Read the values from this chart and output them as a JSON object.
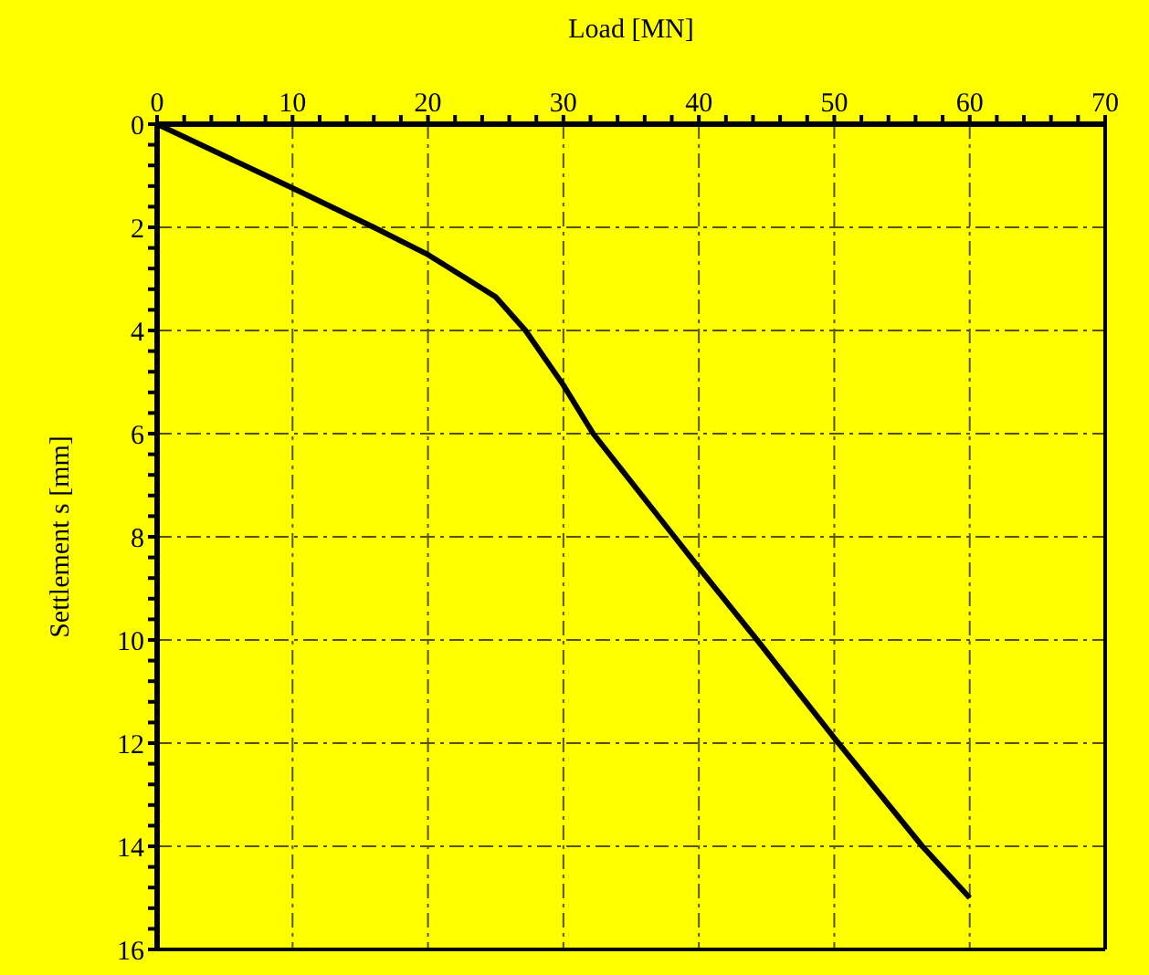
{
  "chart_data": {
    "type": "line",
    "xlabel": "Load [MN]",
    "ylabel": "Settlement s [mm]",
    "x": [
      0,
      10,
      16,
      20,
      25,
      27.2,
      30,
      32.2,
      38.2,
      40,
      44.3,
      50,
      56.5,
      60
    ],
    "series": [
      {
        "color": "#000000",
        "values": [
          0,
          1.24,
          2,
          2.53,
          3.35,
          4,
          5.06,
          6,
          8,
          8.6,
          10,
          11.9,
          14,
          15
        ]
      }
    ],
    "xlim": [
      0,
      70
    ],
    "ylim": [
      16,
      0
    ],
    "xticks": [
      0,
      {
        "value": 2,
        "label": null
      },
      {
        "value": 4,
        "label": null
      },
      {
        "value": 6,
        "label": null
      },
      {
        "value": 8,
        "label": null
      },
      10,
      {
        "value": 12,
        "label": null
      },
      {
        "value": 14,
        "label": null
      },
      {
        "value": 16,
        "label": null
      },
      {
        "value": 18,
        "label": null
      },
      20,
      {
        "value": 22,
        "label": null
      },
      {
        "value": 24,
        "label": null
      },
      {
        "value": 26,
        "label": null
      },
      {
        "value": 28,
        "label": null
      },
      30,
      {
        "value": 32,
        "label": null
      },
      {
        "value": 34,
        "label": null
      },
      {
        "value": 36,
        "label": null
      },
      {
        "value": 38,
        "label": null
      },
      40,
      {
        "value": 42,
        "label": null
      },
      {
        "value": 44,
        "label": null
      },
      {
        "value": 46,
        "label": null
      },
      {
        "value": 48,
        "label": null
      },
      50,
      {
        "value": 52,
        "label": null
      },
      {
        "value": 54,
        "label": null
      },
      {
        "value": 56,
        "label": null
      },
      {
        "value": 58,
        "label": null
      },
      60,
      {
        "value": 62,
        "label": null
      },
      {
        "value": 64,
        "label": null
      },
      {
        "value": 66,
        "label": null
      },
      {
        "value": 68,
        "label": null
      },
      70
    ],
    "yticks": [
      0,
      {
        "value": 0.4,
        "label": null
      },
      {
        "value": 0.8,
        "label": null
      },
      {
        "value": 1.2,
        "label": null
      },
      {
        "value": 1.6,
        "label": null
      },
      2,
      {
        "value": 2.4,
        "label": null
      },
      {
        "value": 2.8,
        "label": null
      },
      {
        "value": 3.2,
        "label": null
      },
      {
        "value": 3.6,
        "label": null
      },
      4,
      {
        "value": 4.4,
        "label": null
      },
      {
        "value": 4.8,
        "label": null
      },
      {
        "value": 5.2,
        "label": null
      },
      {
        "value": 5.6,
        "label": null
      },
      6,
      {
        "value": 6.4,
        "label": null
      },
      {
        "value": 6.8,
        "label": null
      },
      {
        "value": 7.2,
        "label": null
      },
      {
        "value": 7.6,
        "label": null
      },
      8,
      {
        "value": 8.4,
        "label": null
      },
      {
        "value": 8.8,
        "label": null
      },
      {
        "value": 9.2,
        "label": null
      },
      {
        "value": 9.6,
        "label": null
      },
      10,
      {
        "value": 10.4,
        "label": null
      },
      {
        "value": 10.8,
        "label": null
      },
      {
        "value": 11.2,
        "label": null
      },
      {
        "value": 11.6,
        "label": null
      },
      12,
      {
        "value": 12.4,
        "label": null
      },
      {
        "value": 12.8,
        "label": null
      },
      {
        "value": 13.2,
        "label": null
      },
      {
        "value": 13.6,
        "label": null
      },
      14,
      {
        "value": 14.4,
        "label": null
      },
      {
        "value": 14.8,
        "label": null
      },
      {
        "value": 15.2,
        "label": null
      },
      {
        "value": 15.6,
        "label": null
      },
      16
    ],
    "grid": true,
    "marker": "none",
    "line_style": "solid"
  }
}
